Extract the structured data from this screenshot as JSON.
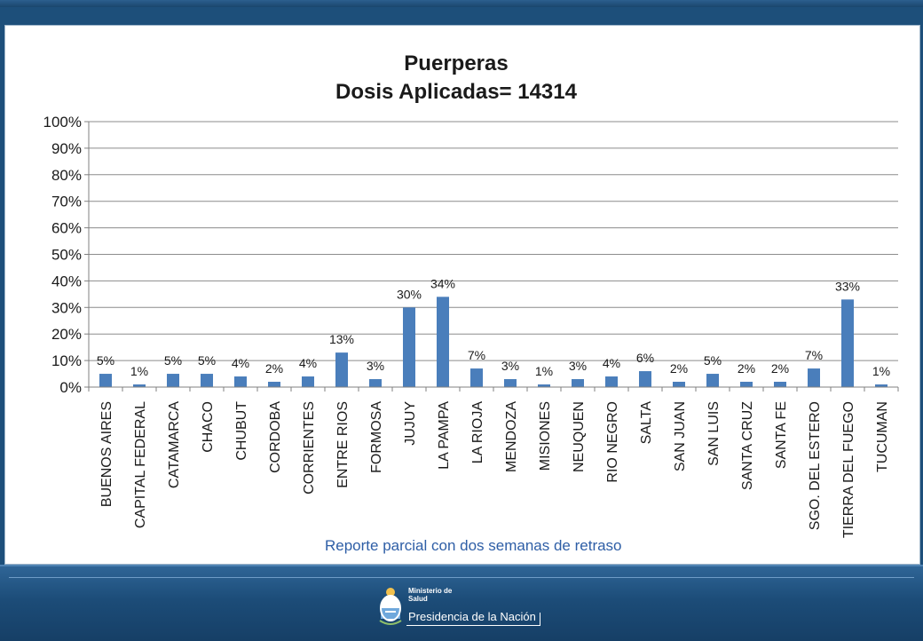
{
  "chart_data": {
    "type": "bar",
    "title": "Puerperas",
    "subtitle": "Dosis Aplicadas= 14314",
    "categories": [
      "BUENOS AIRES",
      "CAPITAL FEDERAL",
      "CATAMARCA",
      "CHACO",
      "CHUBUT",
      "CORDOBA",
      "CORRIENTES",
      "ENTRE RIOS",
      "FORMOSA",
      "JUJUY",
      "LA PAMPA",
      "LA RIOJA",
      "MENDOZA",
      "MISIONES",
      "NEUQUEN",
      "RIO NEGRO",
      "SALTA",
      "SAN JUAN",
      "SAN LUIS",
      "SANTA CRUZ",
      "SANTA FE",
      "SGO. DEL ESTERO",
      "TIERRA DEL FUEGO",
      "TUCUMAN"
    ],
    "values": [
      5,
      1,
      5,
      5,
      4,
      2,
      4,
      13,
      3,
      30,
      34,
      7,
      3,
      1,
      3,
      4,
      6,
      2,
      5,
      2,
      2,
      7,
      33,
      1
    ],
    "data_labels": [
      "5%",
      "1%",
      "5%",
      "5%",
      "4%",
      "2%",
      "4%",
      "13%",
      "3%",
      "30%",
      "34%",
      "7%",
      "3%",
      "1%",
      "3%",
      "4%",
      "6%",
      "2%",
      "5%",
      "2%",
      "2%",
      "7%",
      "33%",
      "1%"
    ],
    "y_ticks": [
      "0%",
      "10%",
      "20%",
      "30%",
      "40%",
      "50%",
      "60%",
      "70%",
      "80%",
      "90%",
      "100%"
    ],
    "ylim": [
      0,
      100
    ],
    "grid": true,
    "bar_color": "#4a7ebb"
  },
  "footnote": "Reporte parcial con dos semanas de retraso",
  "logo": {
    "ministry_line1": "Ministerio de",
    "ministry_line2": "Salud",
    "presidency": "Presidencia de la Nación",
    "emblem": "argentina-coat-of-arms-icon"
  }
}
